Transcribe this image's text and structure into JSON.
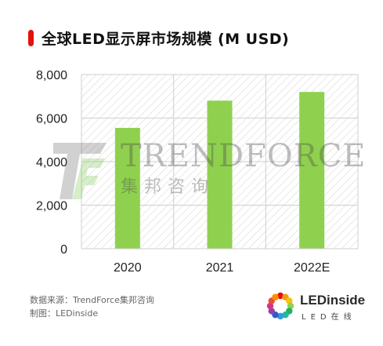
{
  "title": "全球LED显示屏市场规模 (M USD)",
  "accent_color": "#e3120b",
  "bar_color": "#8fd14f",
  "footer": {
    "source": "数据来源：TrendForce集邦咨询",
    "made_by": "制图：LEDinside"
  },
  "logo": {
    "name": "LEDinside",
    "subtitle": "LED在线"
  },
  "watermark": {
    "name": "TRENDFORCE",
    "chinese": "集邦咨询"
  },
  "chart_data": {
    "type": "bar",
    "title": "全球LED显示屏市场规模 (M USD)",
    "categories": [
      "2020",
      "2021",
      "2022E"
    ],
    "values": [
      5550,
      6800,
      7200
    ],
    "ylim": [
      0,
      8000
    ],
    "yticks": [
      0,
      2000,
      4000,
      6000,
      8000
    ],
    "ytick_labels": [
      "0",
      "2,000",
      "4,000",
      "6,000",
      "8,000"
    ],
    "xlabel": "",
    "ylabel": "",
    "grid": "hatched plot area",
    "legend": "none"
  }
}
